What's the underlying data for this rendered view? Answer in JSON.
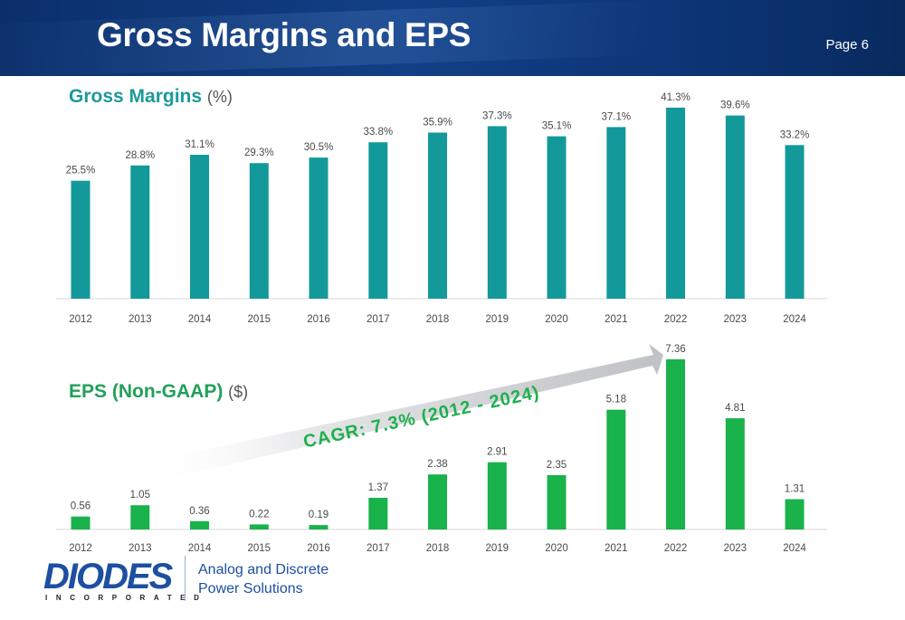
{
  "header": {
    "title": "Gross Margins and EPS",
    "page": "Page 6"
  },
  "colors": {
    "header": "#0d3577",
    "gross_margin_bar": "#13999a",
    "eps_bar": "#19b24b",
    "gm_title": "#1c9a9a",
    "eps_title": "#22a05a",
    "arrow": "#c8cacd"
  },
  "chart_data": [
    {
      "type": "bar",
      "title": "Gross Margins",
      "title_unit": "(%)",
      "categories": [
        "2012",
        "2013",
        "2014",
        "2015",
        "2016",
        "2017",
        "2018",
        "2019",
        "2020",
        "2021",
        "2022",
        "2023",
        "2024"
      ],
      "values": [
        25.5,
        28.8,
        31.1,
        29.3,
        30.5,
        33.8,
        35.9,
        37.3,
        35.1,
        37.1,
        41.3,
        39.6,
        33.2
      ],
      "value_labels": [
        "25.5%",
        "28.8%",
        "31.1%",
        "29.3%",
        "30.5%",
        "33.8%",
        "35.9%",
        "37.3%",
        "35.1%",
        "37.1%",
        "41.3%",
        "39.6%",
        "33.2%"
      ],
      "ylim": [
        0,
        45
      ],
      "grid": false,
      "legend": "none"
    },
    {
      "type": "bar",
      "title": "EPS (Non-GAAP)",
      "title_unit": "($)",
      "categories": [
        "2012",
        "2013",
        "2014",
        "2015",
        "2016",
        "2017",
        "2018",
        "2019",
        "2020",
        "2021",
        "2022",
        "2023",
        "2024"
      ],
      "values": [
        0.56,
        1.05,
        0.36,
        0.22,
        0.19,
        1.37,
        2.38,
        2.91,
        2.35,
        5.18,
        7.36,
        4.81,
        1.31
      ],
      "value_labels": [
        "0.56",
        "1.05",
        "0.36",
        "0.22",
        "0.19",
        "1.37",
        "2.38",
        "2.91",
        "2.35",
        "5.18",
        "7.36",
        "4.81",
        "1.31"
      ],
      "ylim": [
        0,
        7.36
      ],
      "grid": false,
      "legend": "none",
      "annotation": "CAGR: 7.3% (2012 - 2024)"
    }
  ],
  "footer": {
    "logo_word": "DIODES",
    "logo_sub": "INCORPORATED",
    "tagline_line1": "Analog and Discrete",
    "tagline_line2": "Power Solutions"
  }
}
